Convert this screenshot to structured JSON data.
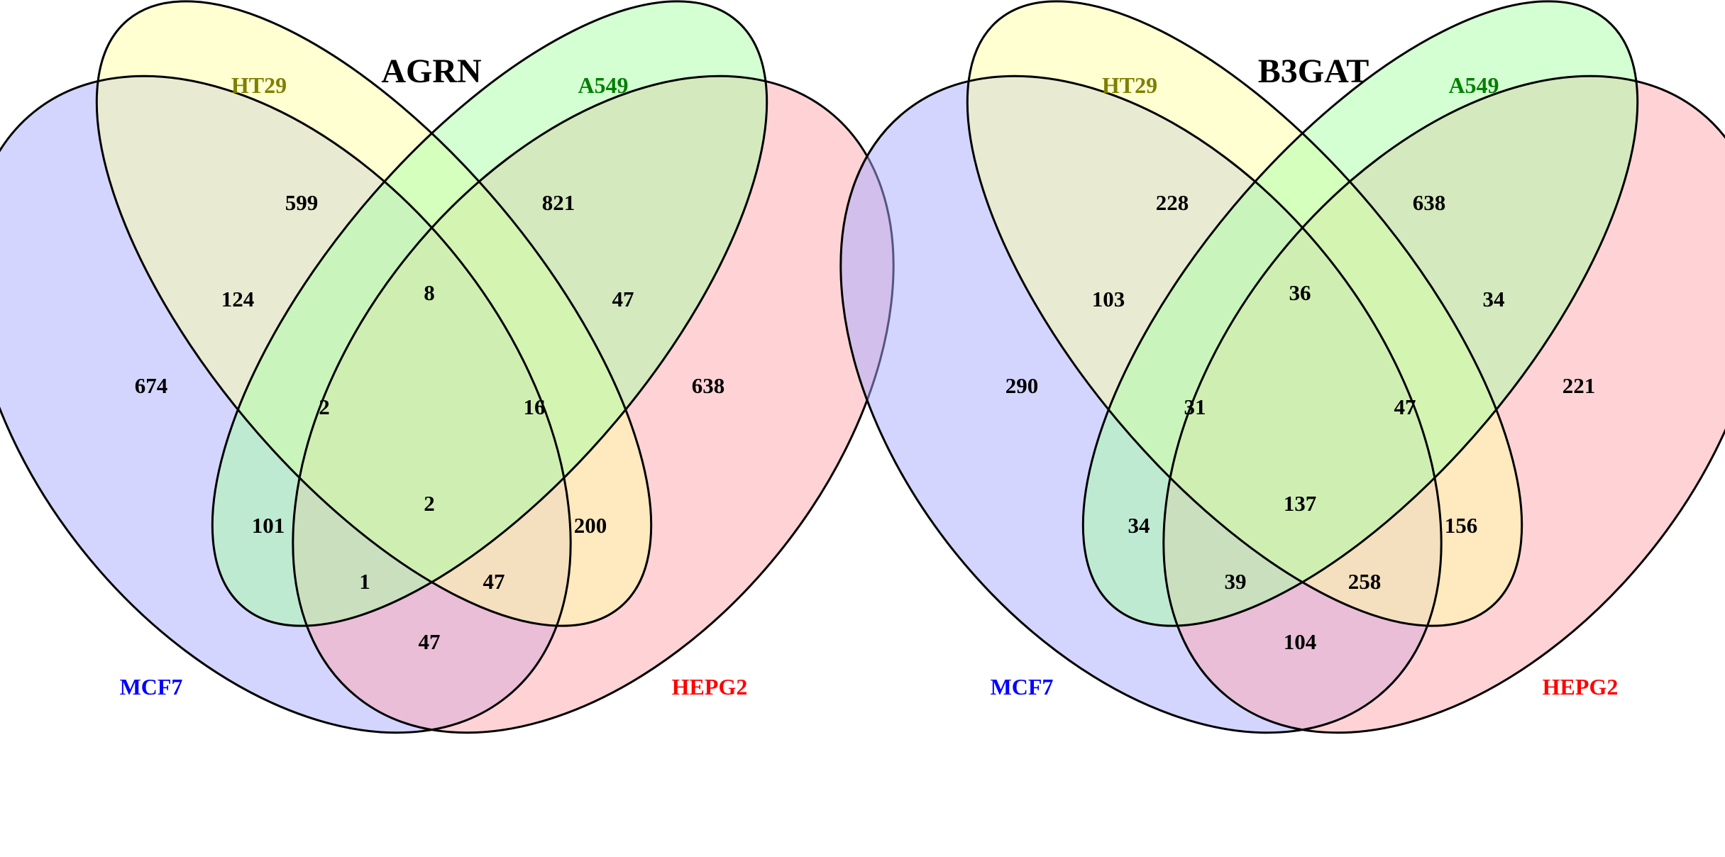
{
  "diagrams": [
    {
      "title": "AGRN",
      "sets": [
        {
          "key": "mcf7",
          "label": "MCF7",
          "color": "#0000ff",
          "fill": "#a8abff"
        },
        {
          "key": "ht29",
          "label": "HT29",
          "color": "#7f7f00",
          "fill": "#ffffa6"
        },
        {
          "key": "a549",
          "label": "A549",
          "color": "#008000",
          "fill": "#a9ffa6"
        },
        {
          "key": "hepg2",
          "label": "HEPG2",
          "color": "#ff0000",
          "fill": "#ffa8ad"
        }
      ],
      "regions": {
        "mcf7_only": "674",
        "ht29_only": "599",
        "a549_only": "821",
        "hepg2_only": "638",
        "mcf7_ht29": "124",
        "ht29_a549": "8",
        "a549_hepg2": "47",
        "mcf7_ht29_a549": "2",
        "ht29_a549_hepg2": "16",
        "mcf7_a549": "101",
        "all_four": "2",
        "ht29_hepg2": "200",
        "mcf7_a549_hepg2": "1",
        "mcf7_ht29_hepg2": "47",
        "mcf7_hepg2": "47"
      }
    },
    {
      "title": "B3GAT",
      "sets": [
        {
          "key": "mcf7",
          "label": "MCF7",
          "color": "#0000ff",
          "fill": "#a8abff"
        },
        {
          "key": "ht29",
          "label": "HT29",
          "color": "#7f7f00",
          "fill": "#ffffa6"
        },
        {
          "key": "a549",
          "label": "A549",
          "color": "#008000",
          "fill": "#a9ffa6"
        },
        {
          "key": "hepg2",
          "label": "HEPG2",
          "color": "#ff0000",
          "fill": "#ffa8ad"
        }
      ],
      "regions": {
        "mcf7_only": "290",
        "ht29_only": "228",
        "a549_only": "638",
        "hepg2_only": "221",
        "mcf7_ht29": "103",
        "ht29_a549": "36",
        "a549_hepg2": "34",
        "mcf7_ht29_a549": "31",
        "ht29_a549_hepg2": "47",
        "mcf7_a549": "34",
        "all_four": "137",
        "ht29_hepg2": "156",
        "mcf7_a549_hepg2": "39",
        "mcf7_ht29_hepg2": "258",
        "mcf7_hepg2": "104"
      }
    }
  ]
}
